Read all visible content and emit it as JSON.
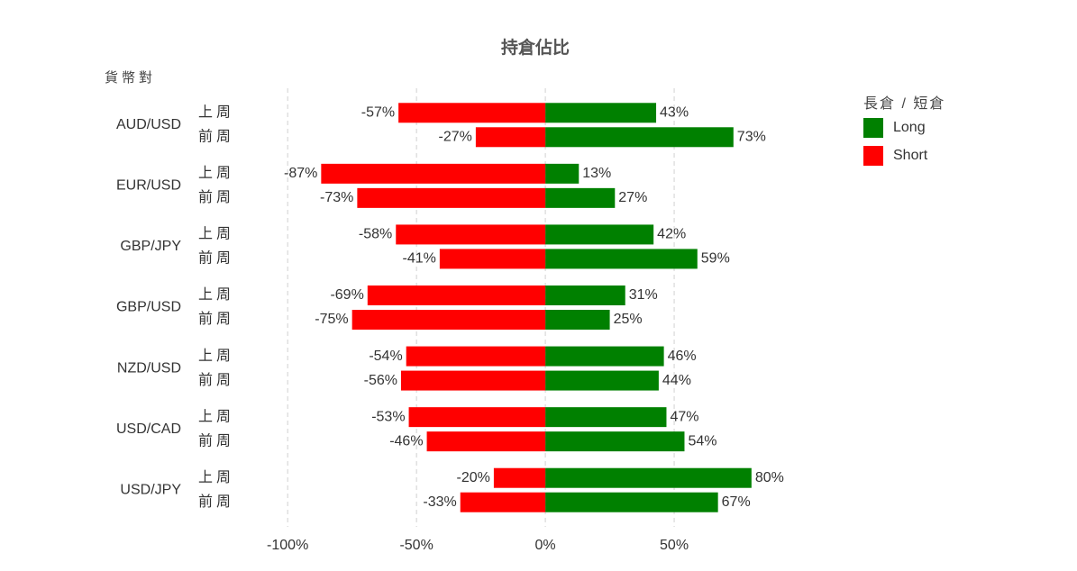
{
  "chart_data": {
    "type": "bar",
    "orientation": "horizontal",
    "title": "持倉佔比",
    "y_label": "貨幣對",
    "legend_title": "長倉 / 短倉",
    "categories": [
      "AUD/USD",
      "EUR/USD",
      "GBP/JPY",
      "GBP/USD",
      "NZD/USD",
      "USD/CAD",
      "USD/JPY"
    ],
    "periods": [
      "上周",
      "前周"
    ],
    "series": [
      {
        "name": "Long",
        "color": "#008000",
        "values": [
          [
            43,
            73
          ],
          [
            13,
            27
          ],
          [
            42,
            59
          ],
          [
            31,
            25
          ],
          [
            46,
            44
          ],
          [
            47,
            54
          ],
          [
            80,
            67
          ]
        ],
        "value_labels": [
          [
            "43%",
            "73%"
          ],
          [
            "13%",
            "27%"
          ],
          [
            "42%",
            "59%"
          ],
          [
            "31%",
            "25%"
          ],
          [
            "46%",
            "44%"
          ],
          [
            "47%",
            "54%"
          ],
          [
            "80%",
            "67%"
          ]
        ]
      },
      {
        "name": "Short",
        "color": "#ff0000",
        "values": [
          [
            -57,
            -27
          ],
          [
            -87,
            -73
          ],
          [
            -58,
            -41
          ],
          [
            -69,
            -75
          ],
          [
            -54,
            -56
          ],
          [
            -53,
            -46
          ],
          [
            -20,
            -33
          ]
        ],
        "value_labels": [
          [
            "-57%",
            "-27%"
          ],
          [
            "-87%",
            "-73%"
          ],
          [
            "-58%",
            "-41%"
          ],
          [
            "-69%",
            "-75%"
          ],
          [
            "-54%",
            "-56%"
          ],
          [
            "-53%",
            "-46%"
          ],
          [
            "-20%",
            "-33%"
          ]
        ]
      }
    ],
    "xlim": [
      -120,
      100
    ],
    "xticks": [
      {
        "value": -100,
        "label": "-100%"
      },
      {
        "value": -50,
        "label": "-50%"
      },
      {
        "value": 0,
        "label": "0%"
      },
      {
        "value": 50,
        "label": "50%"
      }
    ],
    "grid": true,
    "legend": "right"
  }
}
